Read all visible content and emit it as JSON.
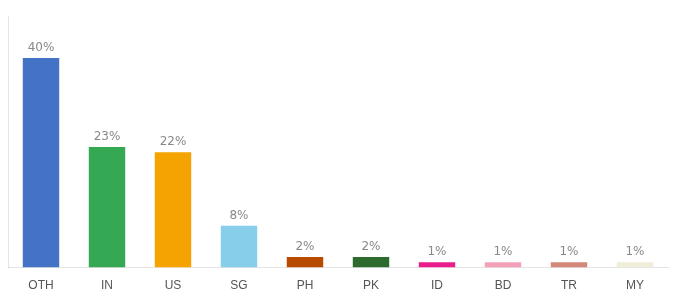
{
  "chart_data": {
    "type": "bar",
    "categories": [
      "OTH",
      "IN",
      "US",
      "SG",
      "PH",
      "PK",
      "ID",
      "BD",
      "TR",
      "MY"
    ],
    "values": [
      40,
      23,
      22,
      8,
      2,
      2,
      1,
      1,
      1,
      1
    ],
    "value_labels": [
      "40%",
      "23%",
      "22%",
      "8%",
      "2%",
      "2%",
      "1%",
      "1%",
      "1%",
      "1%"
    ],
    "data_labels": true,
    "colors": [
      "#4472C4",
      "#34A853",
      "#F5A300",
      "#87CEEB",
      "#B84B00",
      "#2D6A2D",
      "#E91E8C",
      "#F4A0B8",
      "#D4887A",
      "#F0EDD8"
    ],
    "ylim": [
      0,
      48
    ],
    "grid": false,
    "tick_labels": "x"
  }
}
